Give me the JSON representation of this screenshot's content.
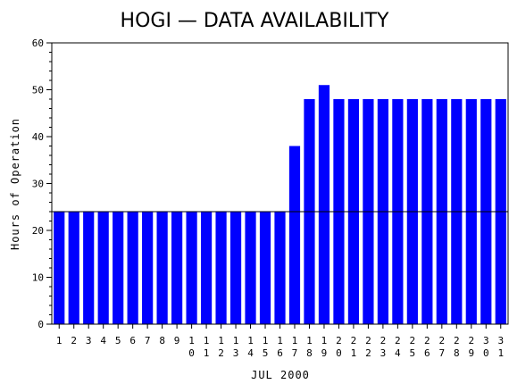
{
  "chart_data": {
    "type": "bar",
    "title": "HOGI — DATA AVAILABILITY",
    "xlabel": "JUL 2000",
    "ylabel": "Hours of Operation",
    "ylim": [
      0,
      60
    ],
    "yticks": [
      0,
      10,
      20,
      30,
      40,
      50,
      60
    ],
    "categories": [
      "1",
      "2",
      "3",
      "4",
      "5",
      "6",
      "7",
      "8",
      "9",
      "10",
      "11",
      "12",
      "13",
      "14",
      "15",
      "16",
      "17",
      "18",
      "19",
      "20",
      "21",
      "22",
      "23",
      "24",
      "25",
      "26",
      "27",
      "28",
      "29",
      "30",
      "31"
    ],
    "values": [
      24,
      24,
      24,
      24,
      24,
      24,
      24,
      24,
      24,
      24,
      24,
      24,
      24,
      24,
      24,
      24,
      38,
      48,
      51,
      48,
      48,
      48,
      48,
      48,
      48,
      48,
      48,
      48,
      48,
      48,
      48
    ],
    "reference_line": 24,
    "bar_color": "#0000ff",
    "grid": false
  }
}
